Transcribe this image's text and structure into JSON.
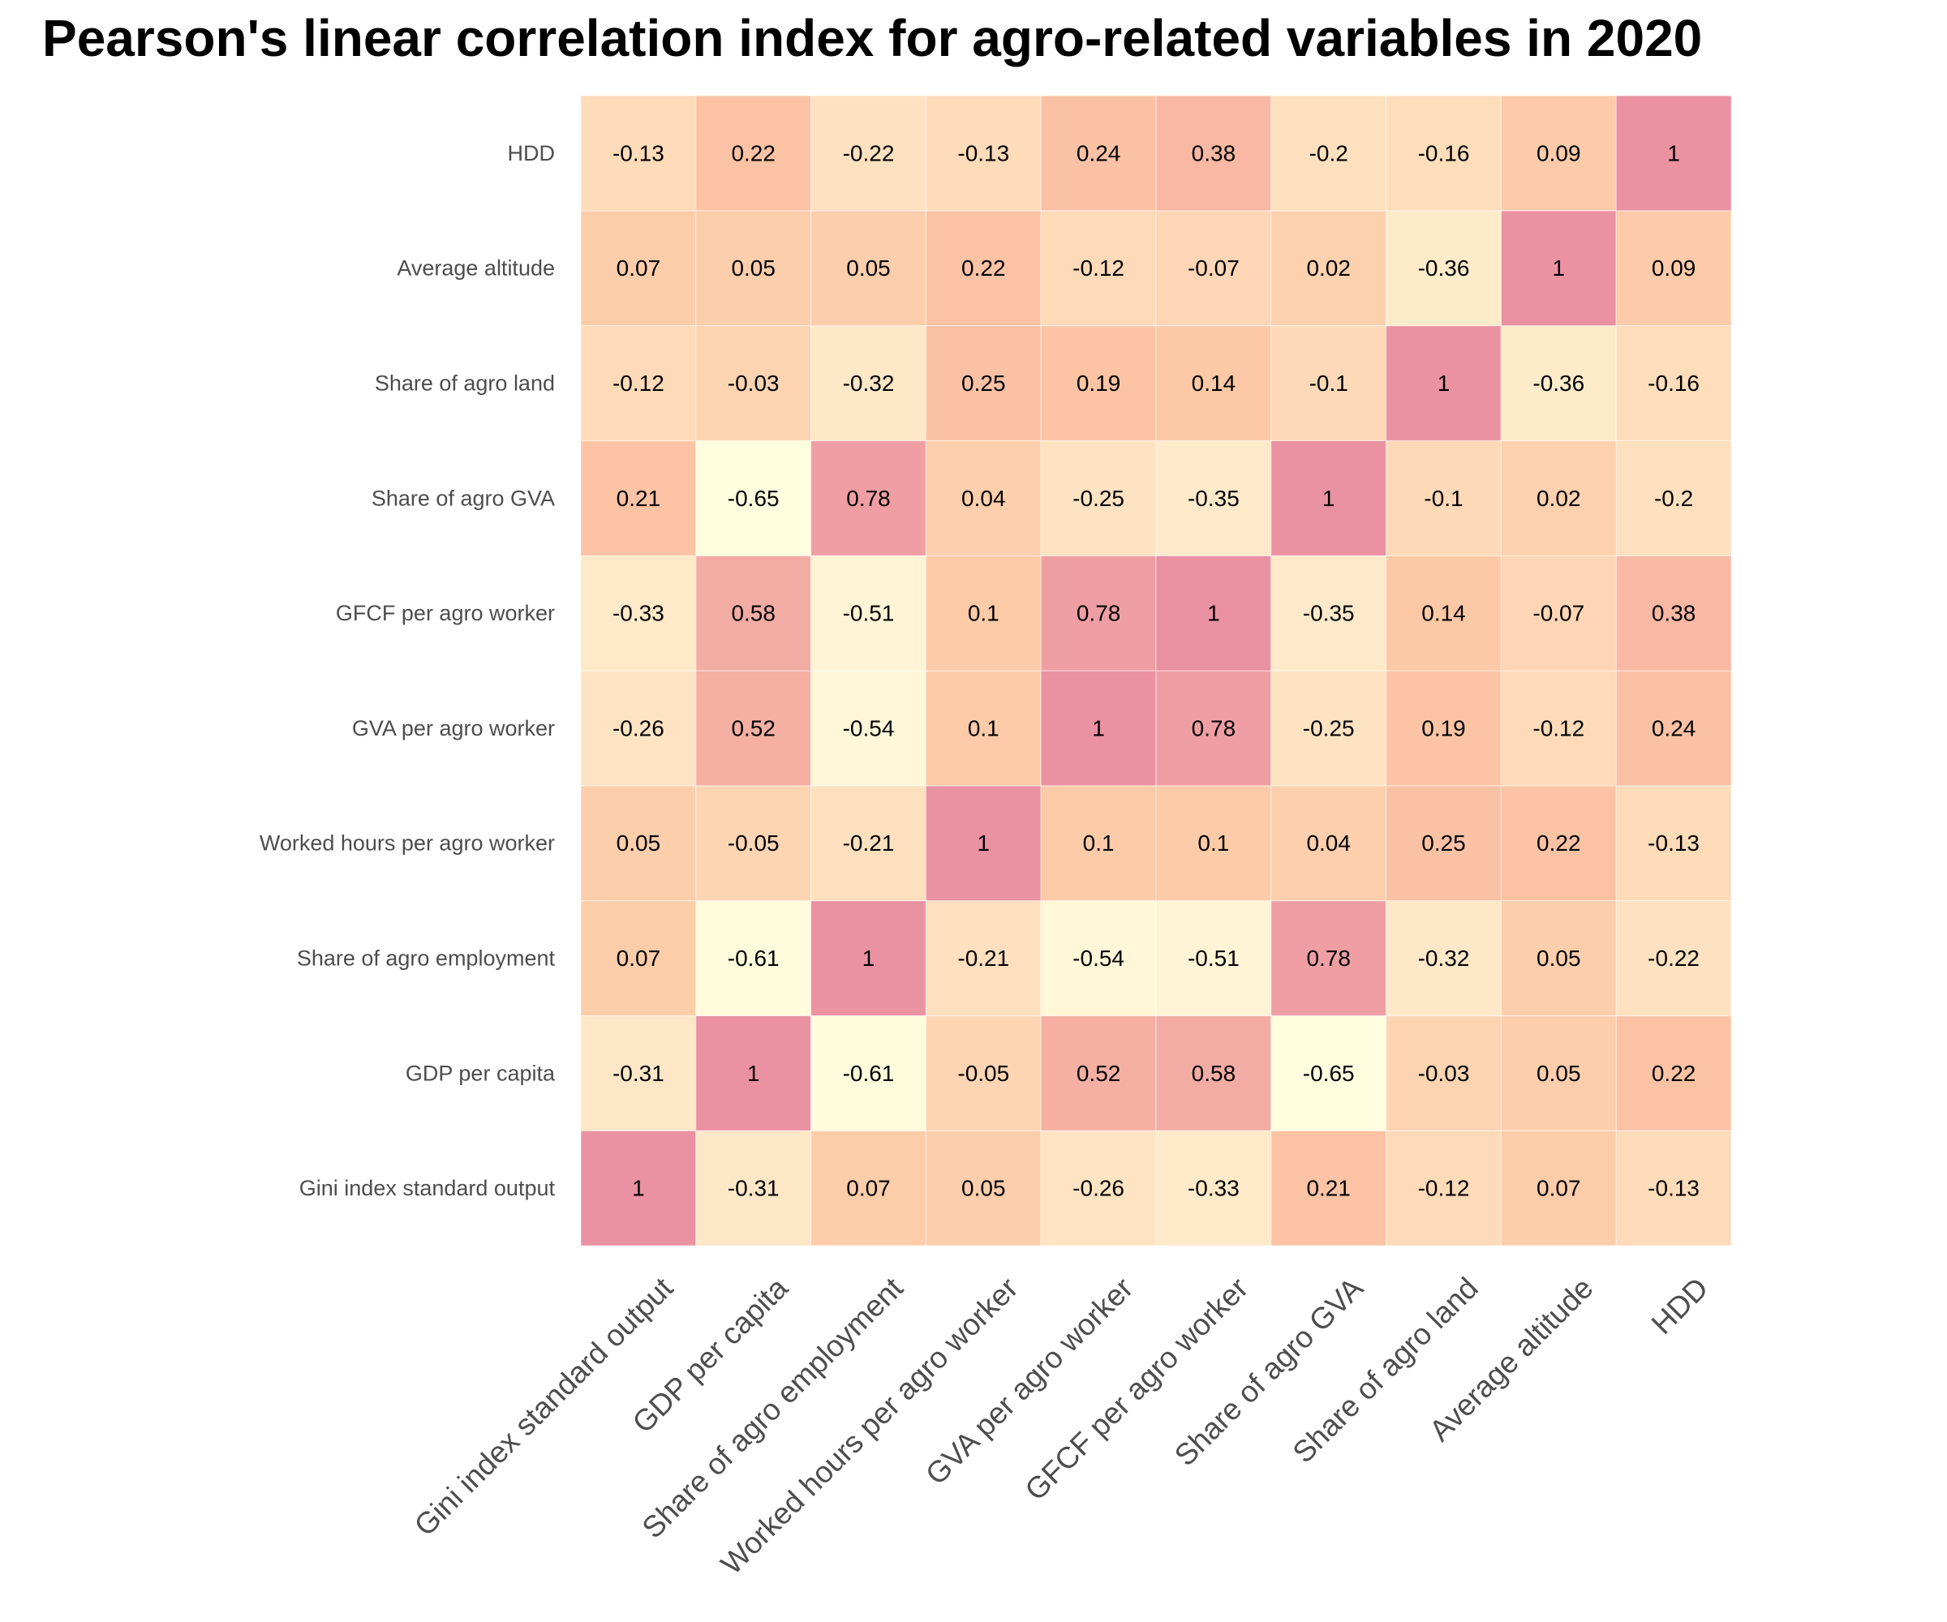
{
  "chart_data": {
    "type": "heatmap",
    "title": "Pearson's linear correlation index for agro-related variables in 2020",
    "xlabel": "",
    "ylabel": "",
    "variables": [
      "Gini index standard output",
      "GDP per capita",
      "Share of agro employment",
      "Worked hours per agro worker",
      "GVA per agro worker",
      "GFCF per agro worker",
      "Share of agro GVA",
      "Share of agro land",
      "Average altitude",
      "HDD"
    ],
    "matrix": [
      [
        1,
        -0.31,
        0.07,
        0.05,
        -0.26,
        -0.33,
        0.21,
        -0.12,
        0.07,
        -0.13
      ],
      [
        -0.31,
        1,
        -0.61,
        -0.05,
        0.52,
        0.58,
        -0.65,
        -0.03,
        0.05,
        0.22
      ],
      [
        0.07,
        -0.61,
        1,
        -0.21,
        -0.54,
        -0.51,
        0.78,
        -0.32,
        0.05,
        -0.22
      ],
      [
        0.05,
        -0.05,
        -0.21,
        1,
        0.1,
        0.1,
        0.04,
        0.25,
        0.22,
        -0.13
      ],
      [
        -0.26,
        0.52,
        -0.54,
        0.1,
        1,
        0.78,
        -0.25,
        0.19,
        -0.12,
        0.24
      ],
      [
        -0.33,
        0.58,
        -0.51,
        0.1,
        0.78,
        1,
        -0.35,
        0.14,
        -0.07,
        0.38
      ],
      [
        0.21,
        -0.65,
        0.78,
        0.04,
        -0.25,
        -0.35,
        1,
        -0.1,
        0.02,
        -0.2
      ],
      [
        -0.12,
        -0.03,
        -0.32,
        0.25,
        0.19,
        0.14,
        -0.1,
        1,
        -0.36,
        -0.16
      ],
      [
        0.07,
        0.05,
        0.05,
        0.22,
        -0.12,
        -0.07,
        0.02,
        -0.36,
        1,
        0.09
      ],
      [
        -0.13,
        0.22,
        -0.22,
        -0.13,
        0.24,
        0.38,
        -0.2,
        -0.16,
        0.09,
        1
      ]
    ],
    "color_scale": {
      "low": "#ffffe0",
      "mid": "#fdc7a4",
      "high": "#ea91a2",
      "domain": [
        -0.65,
        1
      ]
    },
    "legend": "none",
    "grid": false
  }
}
